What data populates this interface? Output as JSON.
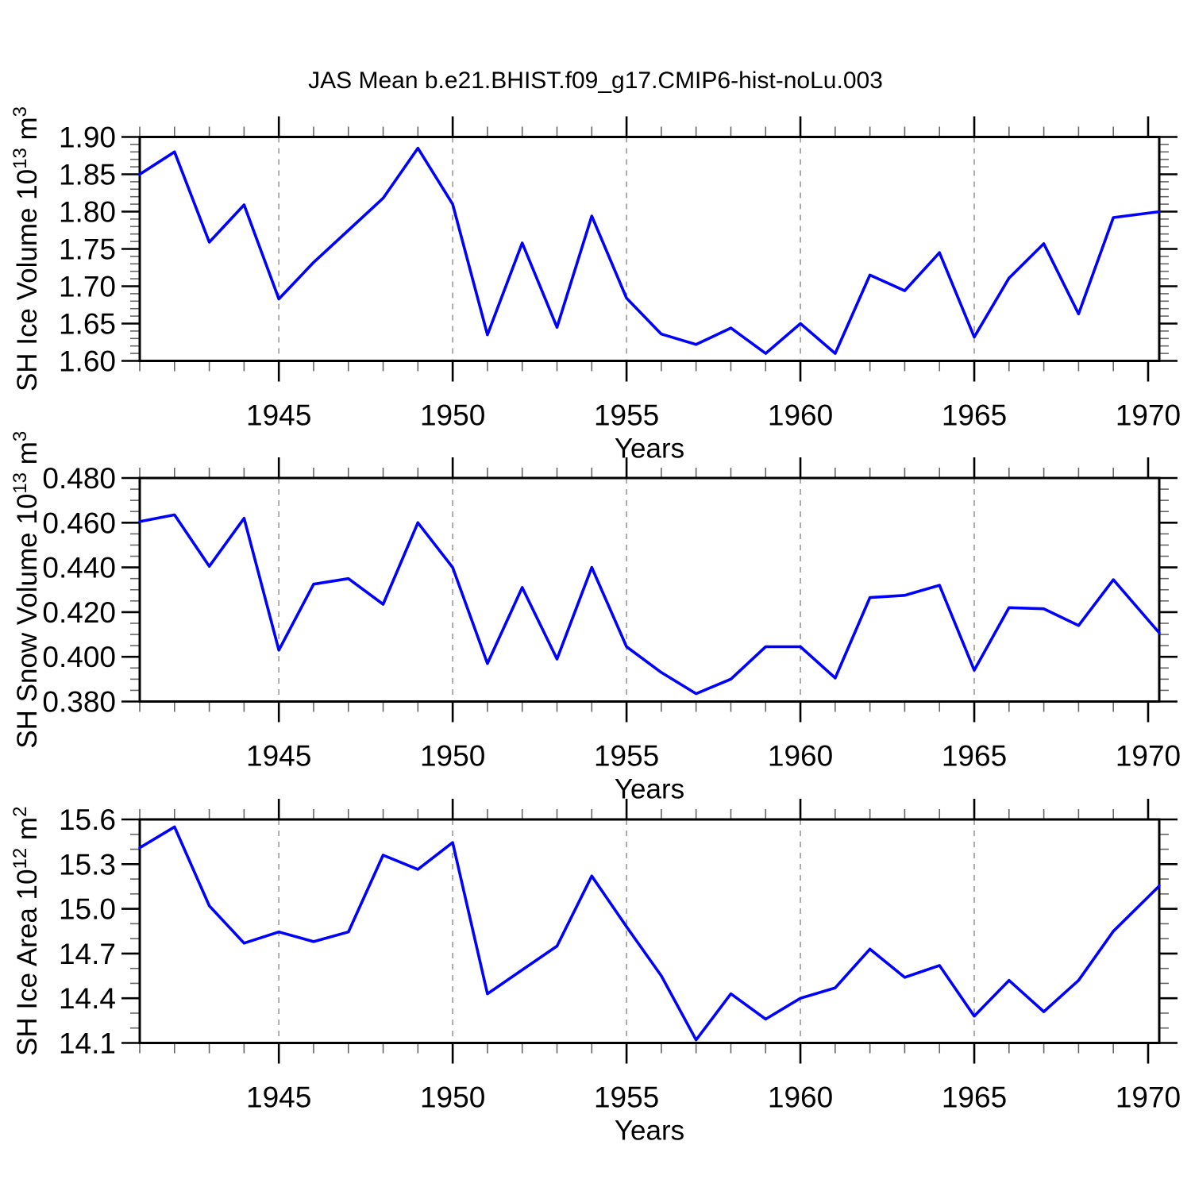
{
  "title": "JAS Mean b.e21.BHIST.f09_g17.CMIP6-hist-noLu.003",
  "colors": {
    "line": "#0000ff",
    "axis": "#000000",
    "minor_tick": "#666666",
    "grid": "#999999",
    "background": "#ffffff"
  },
  "chart_data": [
    {
      "type": "line",
      "ylabel_parts": [
        {
          "text": "SH Ice Volume 10",
          "sup": false
        },
        {
          "text": "13",
          "sup": true
        },
        {
          "text": " m",
          "sup": false
        },
        {
          "text": "3",
          "sup": true
        }
      ],
      "xlabel": "Years",
      "x": [
        1941,
        1942,
        1943,
        1944,
        1945,
        1946,
        1947,
        1948,
        1949,
        1950,
        1951,
        1952,
        1953,
        1954,
        1955,
        1956,
        1957,
        1958,
        1959,
        1960,
        1961,
        1962,
        1963,
        1964,
        1965,
        1966,
        1967,
        1968,
        1969,
        1970
      ],
      "values": [
        1.85,
        1.88,
        1.759,
        1.809,
        1.683,
        1.732,
        1.775,
        1.818,
        1.885,
        1.81,
        1.635,
        1.758,
        1.645,
        1.794,
        1.684,
        1.636,
        1.622,
        1.644,
        1.61,
        1.65,
        1.61,
        1.715,
        1.694,
        1.745,
        1.632,
        1.711,
        1.757,
        1.663,
        1.792,
        1.798
      ],
      "ylim": [
        1.6,
        1.9
      ],
      "ytick_values": [
        1.9,
        1.85,
        1.8,
        1.75,
        1.7,
        1.65,
        1.6
      ],
      "ytick_labels": [
        "1.90",
        "1.85",
        "1.80",
        "1.75",
        "1.70",
        "1.65",
        "1.60"
      ],
      "y_minor_step": 0.01,
      "xlim": [
        1941,
        1970.32
      ],
      "xticks": [
        1945,
        1950,
        1955,
        1960,
        1965,
        1970
      ],
      "xtick_labels": [
        "1945",
        "1950",
        "1955",
        "1960",
        "1965",
        "1970"
      ],
      "x_minor_step": 1,
      "grid_years": [
        1945,
        1950,
        1955,
        1960,
        1965
      ]
    },
    {
      "type": "line",
      "ylabel_parts": [
        {
          "text": "SH Snow Volume 10",
          "sup": false
        },
        {
          "text": "13",
          "sup": true
        },
        {
          "text": " m",
          "sup": false
        },
        {
          "text": "3",
          "sup": true
        }
      ],
      "xlabel": "Years",
      "x": [
        1941,
        1942,
        1943,
        1944,
        1945,
        1946,
        1947,
        1948,
        1949,
        1950,
        1951,
        1952,
        1953,
        1954,
        1955,
        1956,
        1957,
        1958,
        1959,
        1960,
        1961,
        1962,
        1963,
        1964,
        1965,
        1966,
        1967,
        1968,
        1969,
        1970
      ],
      "values": [
        0.4605,
        0.4635,
        0.4405,
        0.462,
        0.403,
        0.4325,
        0.435,
        0.4235,
        0.46,
        0.44,
        0.397,
        0.431,
        0.399,
        0.44,
        0.4045,
        0.393,
        0.3835,
        0.39,
        0.4045,
        0.4045,
        0.3905,
        0.4265,
        0.4275,
        0.432,
        0.394,
        0.422,
        0.4215,
        0.414,
        0.4345,
        0.4165
      ],
      "ylim": [
        0.38,
        0.48
      ],
      "ytick_values": [
        0.48,
        0.46,
        0.44,
        0.42,
        0.4,
        0.38
      ],
      "ytick_labels": [
        "0.480",
        "0.460",
        "0.440",
        "0.420",
        "0.400",
        "0.380"
      ],
      "y_minor_step": 0.005,
      "xlim": [
        1941,
        1970.32
      ],
      "xticks": [
        1945,
        1950,
        1955,
        1960,
        1965,
        1970
      ],
      "xtick_labels": [
        "1945",
        "1950",
        "1955",
        "1960",
        "1965",
        "1970"
      ],
      "x_minor_step": 1,
      "grid_years": [
        1945,
        1950,
        1955,
        1960,
        1965
      ]
    },
    {
      "type": "line",
      "ylabel_parts": [
        {
          "text": "SH Ice Area 10",
          "sup": false
        },
        {
          "text": "12",
          "sup": true
        },
        {
          "text": " m",
          "sup": false
        },
        {
          "text": "2",
          "sup": true
        }
      ],
      "xlabel": "Years",
      "x": [
        1941,
        1942,
        1943,
        1944,
        1945,
        1946,
        1947,
        1948,
        1949,
        1950,
        1951,
        1952,
        1953,
        1954,
        1955,
        1956,
        1957,
        1958,
        1959,
        1960,
        1961,
        1962,
        1963,
        1964,
        1965,
        1966,
        1967,
        1968,
        1969,
        1970
      ],
      "values": [
        15.41,
        15.55,
        15.02,
        14.77,
        14.845,
        14.78,
        14.845,
        15.36,
        15.265,
        15.445,
        14.43,
        14.59,
        14.75,
        15.22,
        14.88,
        14.55,
        14.12,
        14.43,
        14.26,
        14.4,
        14.47,
        14.73,
        14.54,
        14.62,
        14.28,
        14.52,
        14.31,
        14.52,
        14.85,
        15.08
      ],
      "ylim": [
        14.1,
        15.6
      ],
      "ytick_values": [
        15.6,
        15.3,
        15.0,
        14.7,
        14.4,
        14.1
      ],
      "ytick_labels": [
        "15.6",
        "15.3",
        "15.0",
        "14.7",
        "14.4",
        "14.1"
      ],
      "y_minor_step": 0.1,
      "xlim": [
        1941,
        1970.32
      ],
      "xticks": [
        1945,
        1950,
        1955,
        1960,
        1965,
        1970
      ],
      "xtick_labels": [
        "1945",
        "1950",
        "1955",
        "1960",
        "1965",
        "1970"
      ],
      "x_minor_step": 1,
      "grid_years": [
        1945,
        1950,
        1955,
        1960,
        1965
      ]
    }
  ]
}
